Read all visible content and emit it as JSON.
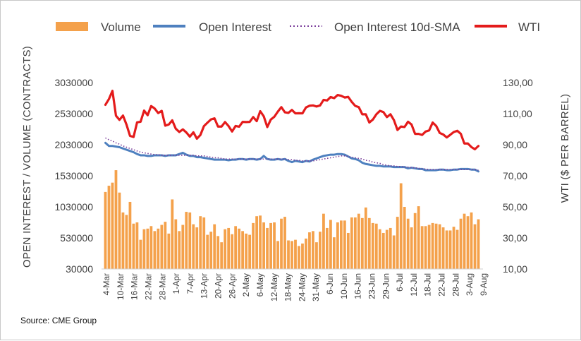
{
  "chart_data": {
    "type": "bar+line",
    "title": "",
    "source": "Source: CME Group",
    "y_left": {
      "label": "OPEN INTEREST / VOLUME (CONTRACTS)",
      "ticks": [
        30000,
        530000,
        1030000,
        1530000,
        2030000,
        2530000,
        3030000
      ],
      "tick_labels": [
        "30000",
        "530000",
        "1030000",
        "1530000",
        "2030000",
        "2530000",
        "3030000"
      ],
      "range": [
        30000,
        3030000
      ]
    },
    "y_right": {
      "label": "WTI ($ PER BARREL)",
      "ticks": [
        10,
        30,
        50,
        70,
        90,
        110,
        130
      ],
      "tick_labels": [
        "10,00",
        "30,00",
        "50,00",
        "70,00",
        "90,00",
        "110,00",
        "130,00"
      ],
      "range": [
        10,
        130
      ]
    },
    "x_tick_labels": [
      "4-Mar",
      "10-Mar",
      "16-Mar",
      "22-Mar",
      "28-Mar",
      "1-Apr",
      "7-Apr",
      "13-Apr",
      "20-Apr",
      "26-Apr",
      "2-May",
      "6-May",
      "12-May",
      "18-May",
      "24-May",
      "31-May",
      "6-Jun",
      "10-Jun",
      "16-Jun",
      "23-Jun",
      "29-Jun",
      "6-Jul",
      "12-Jul",
      "18-Jul",
      "22-Jul",
      "28-Jul",
      "3-Aug",
      "9-Aug"
    ],
    "legend": [
      {
        "name": "Volume",
        "type": "bar",
        "color": "#f4a14b"
      },
      {
        "name": "Open Interest",
        "type": "line",
        "color": "#4e80bf"
      },
      {
        "name": "Open Interest 10d-SMA",
        "type": "dotted-line",
        "color": "#7a3d9a"
      },
      {
        "name": "WTI",
        "type": "line",
        "color": "#e41b1b"
      }
    ],
    "series": [
      {
        "name": "Volume",
        "axis": "left",
        "values": [
          1270000,
          1370000,
          1420000,
          1620000,
          1260000,
          940000,
          900000,
          1110000,
          760000,
          780000,
          500000,
          670000,
          680000,
          720000,
          640000,
          680000,
          740000,
          790000,
          600000,
          1150000,
          830000,
          640000,
          740000,
          950000,
          940000,
          750000,
          700000,
          880000,
          860000,
          580000,
          630000,
          750000,
          560000,
          460000,
          670000,
          690000,
          590000,
          720000,
          680000,
          640000,
          600000,
          580000,
          770000,
          880000,
          890000,
          780000,
          690000,
          770000,
          780000,
          480000,
          840000,
          870000,
          490000,
          480000,
          500000,
          400000,
          440000,
          520000,
          620000,
          640000,
          460000,
          630000,
          920000,
          690000,
          820000,
          540000,
          780000,
          810000,
          810000,
          610000,
          860000,
          860000,
          920000,
          850000,
          1020000,
          850000,
          770000,
          760000,
          670000,
          610000,
          660000,
          690000,
          570000,
          870000,
          1410000,
          1030000,
          840000,
          700000,
          930000,
          1040000,
          720000,
          720000,
          740000,
          770000,
          760000,
          750000,
          700000,
          650000,
          650000,
          710000,
          660000,
          840000,
          920000,
          880000,
          940000,
          750000,
          830000
        ]
      },
      {
        "name": "Open Interest",
        "axis": "left",
        "values": [
          2060000,
          2010000,
          2010000,
          2000000,
          1990000,
          1970000,
          1950000,
          1930000,
          1910000,
          1880000,
          1860000,
          1860000,
          1850000,
          1850000,
          1860000,
          1860000,
          1860000,
          1850000,
          1860000,
          1860000,
          1860000,
          1880000,
          1900000,
          1870000,
          1850000,
          1850000,
          1830000,
          1830000,
          1820000,
          1810000,
          1800000,
          1790000,
          1790000,
          1790000,
          1790000,
          1780000,
          1790000,
          1790000,
          1800000,
          1800000,
          1790000,
          1800000,
          1800000,
          1790000,
          1800000,
          1850000,
          1800000,
          1790000,
          1790000,
          1800000,
          1790000,
          1800000,
          1770000,
          1750000,
          1770000,
          1760000,
          1750000,
          1770000,
          1760000,
          1790000,
          1810000,
          1830000,
          1850000,
          1860000,
          1870000,
          1870000,
          1880000,
          1880000,
          1870000,
          1840000,
          1810000,
          1800000,
          1780000,
          1740000,
          1720000,
          1710000,
          1700000,
          1690000,
          1690000,
          1680000,
          1680000,
          1680000,
          1670000,
          1670000,
          1670000,
          1670000,
          1650000,
          1660000,
          1650000,
          1640000,
          1640000,
          1620000,
          1620000,
          1620000,
          1620000,
          1630000,
          1630000,
          1620000,
          1620000,
          1630000,
          1630000,
          1640000,
          1640000,
          1640000,
          1630000,
          1630000,
          1600000
        ]
      },
      {
        "name": "Open Interest 10d-SMA",
        "axis": "left",
        "values": [
          2140000,
          2110000,
          2090000,
          2060000,
          2040000,
          2010000,
          1990000,
          1970000,
          1950000,
          1930000,
          1910000,
          1900000,
          1890000,
          1880000,
          1870000,
          1870000,
          1860000,
          1860000,
          1860000,
          1860000,
          1860000,
          1860000,
          1860000,
          1860000,
          1860000,
          1860000,
          1850000,
          1850000,
          1850000,
          1840000,
          1830000,
          1820000,
          1820000,
          1810000,
          1800000,
          1800000,
          1800000,
          1800000,
          1800000,
          1800000,
          1800000,
          1800000,
          1800000,
          1800000,
          1800000,
          1800000,
          1800000,
          1800000,
          1800000,
          1800000,
          1800000,
          1800000,
          1790000,
          1790000,
          1780000,
          1780000,
          1770000,
          1770000,
          1770000,
          1770000,
          1780000,
          1790000,
          1800000,
          1810000,
          1820000,
          1830000,
          1840000,
          1850000,
          1850000,
          1840000,
          1830000,
          1820000,
          1810000,
          1800000,
          1780000,
          1770000,
          1750000,
          1740000,
          1730000,
          1710000,
          1700000,
          1690000,
          1690000,
          1680000,
          1680000,
          1670000,
          1670000,
          1660000,
          1660000,
          1650000,
          1640000,
          1640000,
          1630000,
          1630000,
          1630000,
          1630000,
          1630000,
          1630000,
          1630000,
          1630000,
          1630000,
          1630000,
          1630000,
          1630000,
          1630000,
          1630000,
          1620000
        ]
      },
      {
        "name": "WTI",
        "axis": "right",
        "values": [
          115.7,
          119.4,
          124.7,
          108.7,
          106.0,
          108.8,
          102.9,
          95.7,
          95.0,
          104.4,
          104.8,
          112.0,
          109.0,
          114.9,
          113.3,
          110.4,
          111.8,
          102.3,
          103.0,
          105.7,
          100.3,
          98.2,
          99.9,
          97.9,
          95.2,
          98.0,
          93.9,
          96.3,
          102.0,
          104.2,
          106.3,
          107.0,
          101.7,
          101.7,
          104.6,
          102.0,
          98.5,
          102.1,
          101.6,
          104.7,
          104.6,
          104.7,
          107.8,
          105.2,
          111.6,
          108.3,
          101.4,
          106.2,
          108.0,
          111.3,
          114.2,
          110.9,
          110.5,
          112.4,
          110.2,
          110.3,
          110.2,
          114.0,
          115.1,
          115.3,
          114.6,
          115.3,
          118.9,
          118.5,
          120.7,
          120.0,
          122.0,
          121.5,
          120.4,
          120.8,
          117.6,
          115.0,
          114.2,
          109.6,
          109.6,
          104.3,
          106.2,
          109.6,
          111.8,
          111.0,
          107.8,
          109.6,
          105.8,
          99.5,
          101.7,
          101.4,
          104.8,
          103.0,
          97.0,
          97.0,
          96.3,
          98.5,
          99.2,
          104.3,
          102.1,
          97.6,
          96.6,
          94.7,
          96.4,
          98.2,
          99.0,
          97.0,
          90.8,
          90.8,
          88.5,
          87.1,
          89.2
        ]
      }
    ]
  }
}
